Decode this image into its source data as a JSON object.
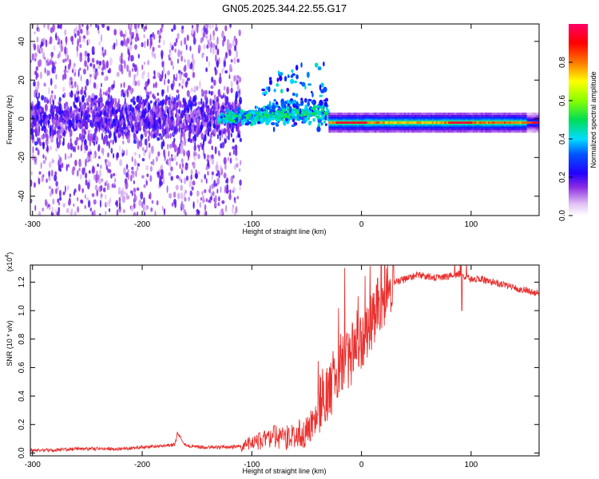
{
  "title": "GN05.2025.344.22.55.G17",
  "chart_data": [
    {
      "type": "heatmap",
      "title": "GN05.2025.344.22.55.G17",
      "xlabel": "Height of straight line (km)",
      "ylabel": "Frequency (Hz)",
      "xlim": [
        -302,
        162
      ],
      "ylim": [
        -50,
        49
      ],
      "x_ticks": [
        -300,
        -200,
        -100,
        0,
        100
      ],
      "x_tick_labels": [
        "-300",
        "-200",
        "-100",
        "0",
        "100"
      ],
      "y_ticks": [
        -40,
        -20,
        0,
        20,
        40
      ],
      "y_tick_labels": [
        "-40",
        "-20",
        "0",
        "20",
        "40"
      ],
      "colorbar": {
        "label": "Normalized spectral amplitude",
        "range": [
          0,
          1
        ],
        "ticks": [
          0,
          0.2,
          0.4,
          0.6,
          0.8
        ],
        "tick_labels": [
          "0.0",
          "0.2",
          "0.4",
          "0.6",
          "0.8"
        ],
        "colormap": "rainbow"
      },
      "features": [
        {
          "name": "scattered noise",
          "x_range": [
            -302,
            -110
          ],
          "frequency_range": [
            -50,
            49
          ],
          "amplitude": [
            0.05,
            0.2
          ]
        },
        {
          "name": "diverging signal",
          "x_range": [
            -130,
            -30
          ],
          "frequency_range": [
            -10,
            32
          ],
          "amplitude": [
            0.2,
            0.45
          ]
        },
        {
          "name": "stable carrier line",
          "x_range": [
            -30,
            162
          ],
          "frequency_hz": -2,
          "amplitude": [
            0.3,
            1.0
          ]
        }
      ]
    },
    {
      "type": "line",
      "title": "",
      "xlabel": "Height of straight line (km)",
      "ylabel": "SNR (10 * v/v)",
      "scale_note": "(x10",
      "scale_exponent": "4",
      "xlim": [
        -302,
        162
      ],
      "ylim": [
        -0.02,
        1.32
      ],
      "x_ticks": [
        -300,
        -200,
        -100,
        0,
        100
      ],
      "x_tick_labels": [
        "-300",
        "-200",
        "-100",
        "0",
        "100"
      ],
      "y_ticks": [
        0,
        0.2,
        0.4,
        0.6,
        0.8,
        1.0,
        1.2
      ],
      "y_tick_labels": [
        "0.0",
        "0.2",
        "0.4",
        "0.6",
        "0.8",
        "1.0",
        "1.2"
      ],
      "color": "#e8302e",
      "series": [
        {
          "name": "SNR",
          "x": [
            -302,
            -280,
            -260,
            -240,
            -220,
            -200,
            -180,
            -170,
            -168,
            -160,
            -140,
            -120,
            -110,
            -100,
            -90,
            -80,
            -70,
            -60,
            -50,
            -40,
            -35,
            -30,
            -25,
            -20,
            -15,
            -10,
            -5,
            0,
            5,
            10,
            15,
            20,
            25,
            30,
            40,
            50,
            60,
            70,
            80,
            90,
            100,
            110,
            120,
            130,
            140,
            150,
            162
          ],
          "y": [
            0.02,
            0.02,
            0.03,
            0.03,
            0.03,
            0.04,
            0.05,
            0.06,
            0.14,
            0.05,
            0.04,
            0.04,
            0.05,
            0.07,
            0.09,
            0.12,
            0.1,
            0.12,
            0.15,
            0.25,
            0.45,
            0.4,
            0.55,
            0.6,
            0.7,
            0.65,
            0.8,
            0.78,
            0.85,
            0.95,
            1.05,
            1.1,
            1.17,
            1.2,
            1.22,
            1.25,
            1.24,
            1.23,
            1.24,
            1.26,
            1.22,
            1.22,
            1.2,
            1.18,
            1.16,
            1.14,
            1.12
          ]
        }
      ]
    }
  ]
}
